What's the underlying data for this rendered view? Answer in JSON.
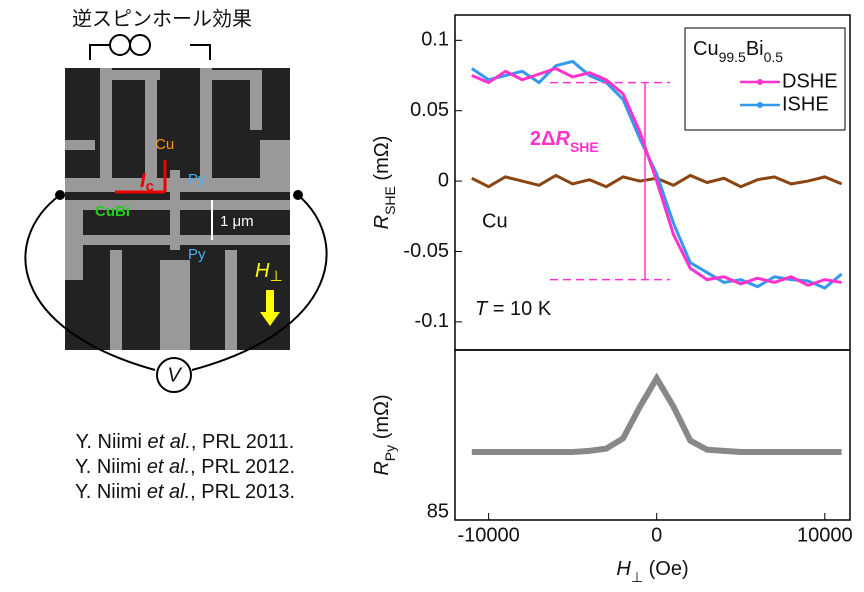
{
  "figure": {
    "title": "逆スピンホール効果",
    "labels": {
      "cu": "Cu",
      "current": [
        "I",
        "c"
      ],
      "py_top": "Py",
      "py_bottom": "Py",
      "cubi": "CuBi",
      "distance": "1 μm",
      "field": [
        "H",
        "⊥"
      ],
      "voltmeter": "V"
    }
  },
  "references": [
    [
      "Y. Niimi ",
      "et al.",
      ", PRL 2011."
    ],
    [
      "Y. Niimi ",
      "et al.",
      ", PRL 2012."
    ],
    [
      "Y. Niimi ",
      "et al.",
      ", PRL 2013."
    ]
  ],
  "chart_data": [
    {
      "type": "line",
      "x": [
        -11000,
        -10000,
        -9000,
        -8000,
        -7000,
        -6000,
        -5000,
        -4000,
        -3000,
        -2000,
        -1000,
        0,
        1000,
        2000,
        3000,
        4000,
        5000,
        6000,
        7000,
        8000,
        9000,
        10000,
        11000
      ],
      "series": [
        {
          "name": "DSHE",
          "color": "#ff33cc",
          "values": [
            0.075,
            0.07,
            0.078,
            0.072,
            0.076,
            0.08,
            0.074,
            0.077,
            0.072,
            0.062,
            0.035,
            0.0,
            -0.038,
            -0.062,
            -0.07,
            -0.068,
            -0.073,
            -0.069,
            -0.072,
            -0.068,
            -0.074,
            -0.07,
            -0.072
          ]
        },
        {
          "name": "ISHE",
          "color": "#3399ee",
          "values": [
            0.08,
            0.072,
            0.075,
            0.078,
            0.07,
            0.082,
            0.085,
            0.075,
            0.07,
            0.058,
            0.03,
            0.005,
            -0.03,
            -0.058,
            -0.065,
            -0.072,
            -0.07,
            -0.075,
            -0.068,
            -0.07,
            -0.071,
            -0.076,
            -0.066
          ]
        },
        {
          "name": "Cu",
          "color": "#8b4513",
          "values": [
            0.002,
            -0.004,
            0.003,
            0.0,
            -0.003,
            0.004,
            -0.002,
            0.001,
            -0.004,
            0.003,
            0.0,
            0.002,
            -0.003,
            0.004,
            -0.001,
            0.002,
            -0.004,
            0.001,
            0.003,
            -0.002,
            0.0,
            0.003,
            -0.002
          ]
        }
      ],
      "xlim": [
        -12000,
        11500
      ],
      "ylim": [
        -0.12,
        0.118
      ],
      "yticks": [
        -0.1,
        -0.05,
        0,
        0.05,
        0.1
      ],
      "ylabel": [
        "R",
        "SHE",
        " (mΩ)"
      ],
      "legend_title": [
        "Cu",
        "99.5",
        "Bi",
        "0.5"
      ],
      "temperature": [
        "T",
        " = 10 K"
      ],
      "delta_label": [
        "2Δ",
        "R",
        "SHE"
      ],
      "reference_levels": [
        0.07,
        -0.07
      ]
    },
    {
      "type": "line",
      "x": [
        -11000,
        -10000,
        -9000,
        -8000,
        -7000,
        -6000,
        -5000,
        -4000,
        -3000,
        -2000,
        -1000,
        0,
        1000,
        2000,
        3000,
        4000,
        5000,
        6000,
        7000,
        8000,
        9000,
        10000,
        11000
      ],
      "values": [
        85.06,
        85.06,
        85.06,
        85.06,
        85.06,
        85.06,
        85.06,
        85.061,
        85.063,
        85.072,
        85.1,
        85.125,
        85.1,
        85.07,
        85.062,
        85.061,
        85.06,
        85.06,
        85.06,
        85.06,
        85.06,
        85.06,
        85.06
      ],
      "color": "#888888",
      "xlim": [
        -12000,
        11500
      ],
      "xticks": [
        -10000,
        0,
        10000
      ],
      "ylim": [
        85,
        85.15
      ],
      "yticks": [
        85
      ],
      "xlabel": [
        "H",
        "⊥",
        " (Oe)"
      ],
      "ylabel": [
        "R",
        "Py",
        " (mΩ)"
      ]
    }
  ]
}
